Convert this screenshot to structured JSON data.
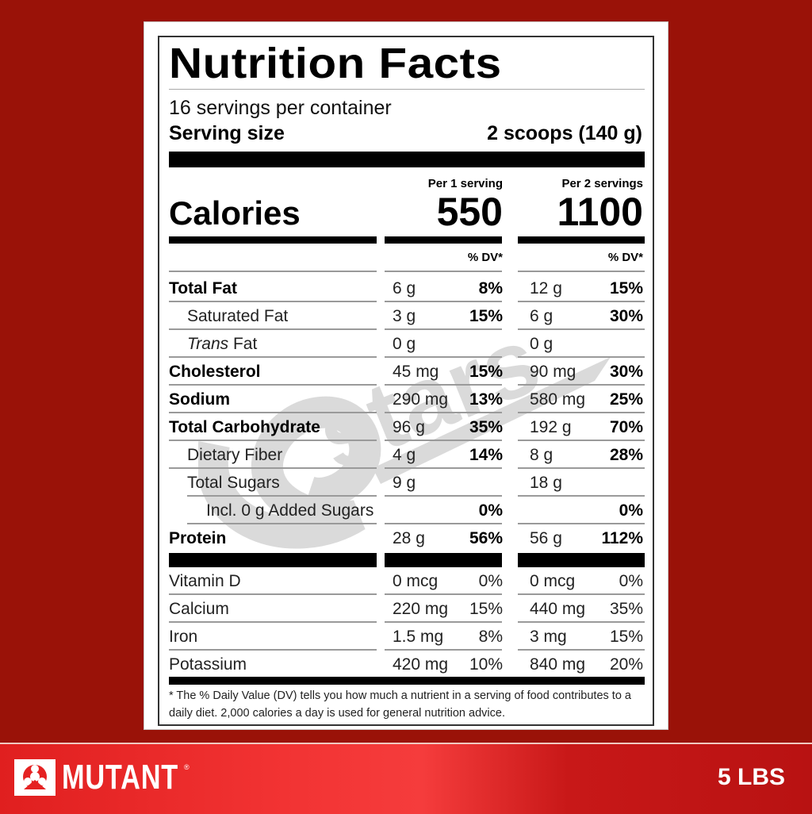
{
  "label": {
    "title": "Nutrition Facts",
    "servings_per_container": "16 servings per container",
    "serving_size_label": "Serving size",
    "serving_size_value": "2 scoops (140 g)",
    "calories_label": "Calories",
    "columns": [
      {
        "heading": "Per 1 serving",
        "calories": "550",
        "dv_heading": "% DV*"
      },
      {
        "heading": "Per 2 servings",
        "calories": "1100",
        "dv_heading": "% DV*"
      }
    ],
    "nutrients": [
      {
        "name": "Total Fat",
        "bold": true,
        "indent": 0,
        "s1_amount": "6 g",
        "s1_dv": "8%",
        "s2_amount": "12 g",
        "s2_dv": "15%"
      },
      {
        "name": "Saturated Fat",
        "bold": false,
        "indent": 1,
        "s1_amount": "3 g",
        "s1_dv": "15%",
        "s2_amount": "6 g",
        "s2_dv": "30%"
      },
      {
        "name_italic": "Trans",
        "name": " Fat",
        "bold": false,
        "indent": 1,
        "s1_amount": "0 g",
        "s1_dv": "",
        "s2_amount": "0 g",
        "s2_dv": ""
      },
      {
        "name": "Cholesterol",
        "bold": true,
        "indent": 0,
        "s1_amount": "45 mg",
        "s1_dv": "15%",
        "s2_amount": "90 mg",
        "s2_dv": "30%"
      },
      {
        "name": "Sodium",
        "bold": true,
        "indent": 0,
        "s1_amount": "290 mg",
        "s1_dv": "13%",
        "s2_amount": "580 mg",
        "s2_dv": "25%"
      },
      {
        "name": "Total Carbohydrate",
        "bold": true,
        "indent": 0,
        "s1_amount": "96 g",
        "s1_dv": "35%",
        "s2_amount": "192 g",
        "s2_dv": "70%"
      },
      {
        "name": "Dietary Fiber",
        "bold": false,
        "indent": 1,
        "s1_amount": "4 g",
        "s1_dv": "14%",
        "s2_amount": "8 g",
        "s2_dv": "28%"
      },
      {
        "name": "Total Sugars",
        "bold": false,
        "indent": 1,
        "s1_amount": "9 g",
        "s1_dv": "",
        "s2_amount": "18 g",
        "s2_dv": ""
      },
      {
        "name": "Incl. 0 g Added Sugars",
        "bold": false,
        "indent": 2,
        "s1_amount": "",
        "s1_dv": "0%",
        "s2_amount": "",
        "s2_dv": "0%"
      },
      {
        "name": "Protein",
        "bold": true,
        "indent": 0,
        "s1_amount": "28 g",
        "s1_dv": "56%",
        "s2_amount": "56 g",
        "s2_dv": "112%"
      }
    ],
    "vitamins": [
      {
        "name": "Vitamin D",
        "s1_amount": "0 mcg",
        "s1_dv": "0%",
        "s2_amount": "0 mcg",
        "s2_dv": "0%"
      },
      {
        "name": "Calcium",
        "s1_amount": "220 mg",
        "s1_dv": "15%",
        "s2_amount": "440 mg",
        "s2_dv": "35%"
      },
      {
        "name": "Iron",
        "s1_amount": "1.5 mg",
        "s1_dv": "8%",
        "s2_amount": "3 mg",
        "s2_dv": "15%"
      },
      {
        "name": "Potassium",
        "s1_amount": "420 mg",
        "s1_dv": "10%",
        "s2_amount": "840 mg",
        "s2_dv": "20%"
      }
    ],
    "footnote": "* The % Daily Value (DV) tells you how much a nutrient in a serving of food contributes to a daily diet. 2,000 calories a day is used for general nutrition advice."
  },
  "brand": {
    "name": "MUTANT",
    "registered": "®",
    "size": "5 LBS",
    "logo_icon": "biohazard-icon"
  },
  "colors": {
    "background": "#9a1208",
    "brand_bar": "#e52222",
    "label_bg": "#ffffff",
    "ink": "#000000"
  }
}
